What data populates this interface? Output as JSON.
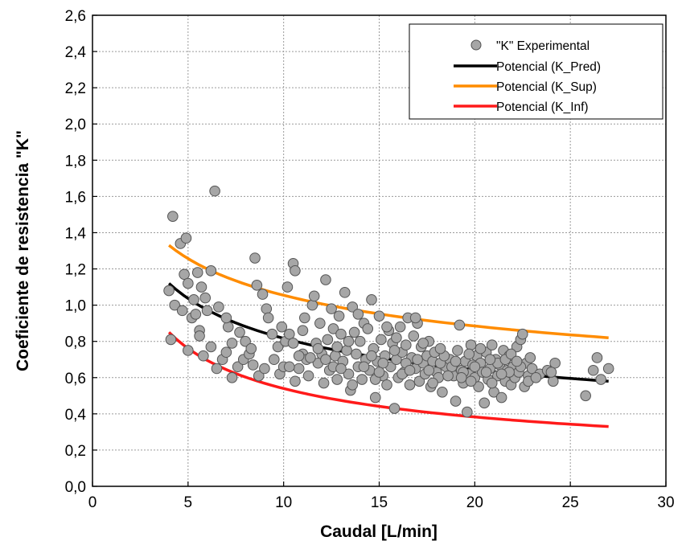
{
  "chart_data": {
    "type": "scatter",
    "xlabel": "Caudal [L/min]",
    "ylabel": "Coeficiente de resistencia \"K\"",
    "xlim": [
      0,
      30
    ],
    "ylim": [
      0,
      2.6
    ],
    "xticks": [
      0,
      5,
      10,
      15,
      20,
      25,
      30
    ],
    "xtick_labels": [
      "0",
      "5",
      "10",
      "15",
      "20",
      "25",
      "30"
    ],
    "yticks": [
      0,
      0.2,
      0.4,
      0.6,
      0.8,
      1.0,
      1.2,
      1.4,
      1.6,
      1.8,
      2.0,
      2.2,
      2.4,
      2.6
    ],
    "ytick_labels": [
      "0,0",
      "0,2",
      "0,4",
      "0,6",
      "0,8",
      "1,0",
      "1,2",
      "1,4",
      "1,6",
      "1,8",
      "2,0",
      "2,2",
      "2,4",
      "2,6"
    ],
    "grid": true,
    "legend_position": "top-right",
    "series": [
      {
        "name": "\"K\" Experimental",
        "kind": "scatter",
        "color": "#a6a6a6",
        "points": [
          [
            4.2,
            1.49
          ],
          [
            4.0,
            1.08
          ],
          [
            4.1,
            0.81
          ],
          [
            4.3,
            1.0
          ],
          [
            4.6,
            1.34
          ],
          [
            4.9,
            1.37
          ],
          [
            4.8,
            1.17
          ],
          [
            5.0,
            1.12
          ],
          [
            4.7,
            0.97
          ],
          [
            5.0,
            0.75
          ],
          [
            5.3,
            1.03
          ],
          [
            5.5,
            1.18
          ],
          [
            5.2,
            0.93
          ],
          [
            5.6,
            0.86
          ],
          [
            5.7,
            1.1
          ],
          [
            5.9,
            1.04
          ],
          [
            6.0,
            0.97
          ],
          [
            6.2,
            1.19
          ],
          [
            6.4,
            1.63
          ],
          [
            5.8,
            0.72
          ],
          [
            5.6,
            0.83
          ],
          [
            6.2,
            0.77
          ],
          [
            6.5,
            0.65
          ],
          [
            6.8,
            0.7
          ],
          [
            7.0,
            0.74
          ],
          [
            7.1,
            0.88
          ],
          [
            7.0,
            0.93
          ],
          [
            7.3,
            0.79
          ],
          [
            7.3,
            0.6
          ],
          [
            7.6,
            0.66
          ],
          [
            7.9,
            0.7
          ],
          [
            8.0,
            0.8
          ],
          [
            8.2,
            0.73
          ],
          [
            8.4,
            0.67
          ],
          [
            8.5,
            1.26
          ],
          [
            8.6,
            1.11
          ],
          [
            8.9,
            1.06
          ],
          [
            9.1,
            0.98
          ],
          [
            9.2,
            0.93
          ],
          [
            8.7,
            0.61
          ],
          [
            9.0,
            0.65
          ],
          [
            9.5,
            0.7
          ],
          [
            9.7,
            0.77
          ],
          [
            9.8,
            0.62
          ],
          [
            10.0,
            0.66
          ],
          [
            10.1,
            0.8
          ],
          [
            10.2,
            1.1
          ],
          [
            10.3,
            0.84
          ],
          [
            10.5,
            1.23
          ],
          [
            10.6,
            1.19
          ],
          [
            10.5,
            0.79
          ],
          [
            10.6,
            0.58
          ],
          [
            10.8,
            0.65
          ],
          [
            11.0,
            0.73
          ],
          [
            11.1,
            0.93
          ],
          [
            11.2,
            0.7
          ],
          [
            11.3,
            0.61
          ],
          [
            11.5,
            1.0
          ],
          [
            11.6,
            1.05
          ],
          [
            11.7,
            0.79
          ],
          [
            11.8,
            0.68
          ],
          [
            11.9,
            0.9
          ],
          [
            12.0,
            0.73
          ],
          [
            12.1,
            0.57
          ],
          [
            12.2,
            1.14
          ],
          [
            12.3,
            0.81
          ],
          [
            12.4,
            0.64
          ],
          [
            12.5,
            0.98
          ],
          [
            12.6,
            0.87
          ],
          [
            12.7,
            0.72
          ],
          [
            12.8,
            0.59
          ],
          [
            12.9,
            0.94
          ],
          [
            13.0,
            0.84
          ],
          [
            13.1,
            0.69
          ],
          [
            13.2,
            1.07
          ],
          [
            13.3,
            0.75
          ],
          [
            13.4,
            0.62
          ],
          [
            13.5,
            0.53
          ],
          [
            13.6,
            0.99
          ],
          [
            13.7,
            0.85
          ],
          [
            13.8,
            0.73
          ],
          [
            13.9,
            0.66
          ],
          [
            14.0,
            0.8
          ],
          [
            14.1,
            0.59
          ],
          [
            14.2,
            0.9
          ],
          [
            14.3,
            0.7
          ],
          [
            14.4,
            0.87
          ],
          [
            14.5,
            0.64
          ],
          [
            14.6,
            1.03
          ],
          [
            14.7,
            0.76
          ],
          [
            14.8,
            0.49
          ],
          [
            14.9,
            0.69
          ],
          [
            15.0,
            0.94
          ],
          [
            15.1,
            0.81
          ],
          [
            15.2,
            0.61
          ],
          [
            15.3,
            0.72
          ],
          [
            15.4,
            0.56
          ],
          [
            15.5,
            0.86
          ],
          [
            15.6,
            0.66
          ],
          [
            15.7,
            0.79
          ],
          [
            15.8,
            0.43
          ],
          [
            15.9,
            0.7
          ],
          [
            16.0,
            0.6
          ],
          [
            16.1,
            0.88
          ],
          [
            16.2,
            0.74
          ],
          [
            16.3,
            0.63
          ],
          [
            16.4,
            0.78
          ],
          [
            16.5,
            0.93
          ],
          [
            16.6,
            0.56
          ],
          [
            16.7,
            0.71
          ],
          [
            16.8,
            0.83
          ],
          [
            16.9,
            0.65
          ],
          [
            17.0,
            0.9
          ],
          [
            17.1,
            0.58
          ],
          [
            17.2,
            0.77
          ],
          [
            17.3,
            0.68
          ],
          [
            17.4,
            0.62
          ],
          [
            17.5,
            0.72
          ],
          [
            17.6,
            0.8
          ],
          [
            17.7,
            0.55
          ],
          [
            17.8,
            0.69
          ],
          [
            17.9,
            0.74
          ],
          [
            18.0,
            0.63
          ],
          [
            18.1,
            0.6
          ],
          [
            18.3,
            0.52
          ],
          [
            18.5,
            0.66
          ],
          [
            18.7,
            0.7
          ],
          [
            18.9,
            0.61
          ],
          [
            19.0,
            0.47
          ],
          [
            19.1,
            0.75
          ],
          [
            19.2,
            0.89
          ],
          [
            19.3,
            0.64
          ],
          [
            19.4,
            0.57
          ],
          [
            19.5,
            0.69
          ],
          [
            19.6,
            0.41
          ],
          [
            19.7,
            0.62
          ],
          [
            19.8,
            0.78
          ],
          [
            19.9,
            0.67
          ],
          [
            20.0,
            0.6
          ],
          [
            20.1,
            0.72
          ],
          [
            20.2,
            0.55
          ],
          [
            20.3,
            0.68
          ],
          [
            20.4,
            0.63
          ],
          [
            20.5,
            0.46
          ],
          [
            20.6,
            0.74
          ],
          [
            20.7,
            0.59
          ],
          [
            20.8,
            0.65
          ],
          [
            20.9,
            0.78
          ],
          [
            21.0,
            0.52
          ],
          [
            21.1,
            0.7
          ],
          [
            21.2,
            0.61
          ],
          [
            21.3,
            0.67
          ],
          [
            21.4,
            0.49
          ],
          [
            21.5,
            0.75
          ],
          [
            21.6,
            0.58
          ],
          [
            21.7,
            0.64
          ],
          [
            21.8,
            0.72
          ],
          [
            21.9,
            0.56
          ],
          [
            22.0,
            0.66
          ],
          [
            22.1,
            0.6
          ],
          [
            22.2,
            0.77
          ],
          [
            22.3,
            0.63
          ],
          [
            22.4,
            0.81
          ],
          [
            22.5,
            0.84
          ],
          [
            22.6,
            0.55
          ],
          [
            22.7,
            0.68
          ],
          [
            22.8,
            0.61
          ],
          [
            23.0,
            0.65
          ],
          [
            23.4,
            0.62
          ],
          [
            23.8,
            0.64
          ],
          [
            24.2,
            0.68
          ],
          [
            24.1,
            0.58
          ],
          [
            25.8,
            0.5
          ],
          [
            26.2,
            0.64
          ],
          [
            26.4,
            0.71
          ],
          [
            26.6,
            0.59
          ],
          [
            27.0,
            0.65
          ],
          [
            10.3,
            0.66
          ],
          [
            11.4,
            0.71
          ],
          [
            12.6,
            0.66
          ],
          [
            13.4,
            0.8
          ],
          [
            14.2,
            0.66
          ],
          [
            15.2,
            0.68
          ],
          [
            15.8,
            0.75
          ],
          [
            16.4,
            0.68
          ],
          [
            17.0,
            0.7
          ],
          [
            17.6,
            0.64
          ],
          [
            18.2,
            0.68
          ],
          [
            18.8,
            0.66
          ],
          [
            19.4,
            0.63
          ],
          [
            20.0,
            0.66
          ],
          [
            20.6,
            0.63
          ],
          [
            21.2,
            0.68
          ],
          [
            21.8,
            0.63
          ],
          [
            22.4,
            0.66
          ],
          [
            12.8,
            0.77
          ],
          [
            14.8,
            0.59
          ],
          [
            16.2,
            0.62
          ],
          [
            18.4,
            0.72
          ],
          [
            19.8,
            0.58
          ],
          [
            21.6,
            0.7
          ],
          [
            22.8,
            0.58
          ],
          [
            13.9,
            0.95
          ],
          [
            15.4,
            0.88
          ],
          [
            16.9,
            0.93
          ],
          [
            18.2,
            0.76
          ],
          [
            19.7,
            0.73
          ],
          [
            20.8,
            0.7
          ],
          [
            21.9,
            0.73
          ],
          [
            9.4,
            0.84
          ],
          [
            10.8,
            0.72
          ],
          [
            12.2,
            0.7
          ],
          [
            14.6,
            0.72
          ],
          [
            15.9,
            0.82
          ],
          [
            17.3,
            0.79
          ],
          [
            18.6,
            0.61
          ],
          [
            20.3,
            0.76
          ],
          [
            22.2,
            0.69
          ],
          [
            11.0,
            0.86
          ],
          [
            13.6,
            0.56
          ],
          [
            16.6,
            0.64
          ],
          [
            19.0,
            0.69
          ],
          [
            20.9,
            0.57
          ],
          [
            7.7,
            0.85
          ],
          [
            8.3,
            0.76
          ],
          [
            6.6,
            0.99
          ],
          [
            5.4,
            0.95
          ],
          [
            9.9,
            0.88
          ],
          [
            11.8,
            0.76
          ],
          [
            13.0,
            0.65
          ],
          [
            15.0,
            0.63
          ],
          [
            17.8,
            0.57
          ],
          [
            19.3,
            0.6
          ],
          [
            21.4,
            0.62
          ],
          [
            22.9,
            0.71
          ],
          [
            23.2,
            0.6
          ],
          [
            24.0,
            0.63
          ]
        ]
      },
      {
        "name": "Potencial (K_Pred)",
        "kind": "line",
        "color": "#000000",
        "x": [
          4.0,
          27.0
        ],
        "y": [
          1.12,
          0.58
        ]
      },
      {
        "name": "Potencial (K_Sup)",
        "kind": "line",
        "color": "#ff8c00",
        "x": [
          4.0,
          27.0
        ],
        "y": [
          1.33,
          0.82
        ]
      },
      {
        "name": "Potencial (K_Inf)",
        "kind": "line",
        "color": "#ff1a1a",
        "x": [
          4.0,
          27.0
        ],
        "y": [
          0.85,
          0.33
        ]
      }
    ]
  }
}
